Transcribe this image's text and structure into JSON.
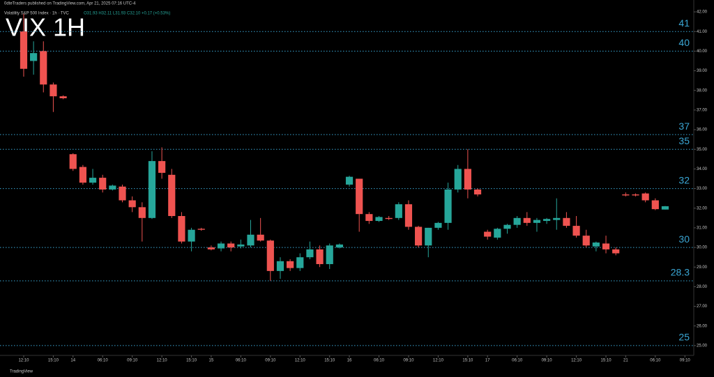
{
  "chart_data": {
    "type": "candlestick",
    "title": "VIX 1H",
    "header": "0dteTraders published on TradingView.com, Apr 21, 2025 07:16 UTC-4",
    "symbol": "Volatility S&P 500 Index · 1h · TVC",
    "ohlc_legend": "O31.93 H32.11 L31.93 C32.10 +0.17 (+0.53%)",
    "footer": "TradingView",
    "up_color": "#26a69a",
    "down_color": "#ef5350",
    "level_color": "#3aa6d4",
    "open": [
      41.0,
      39.5,
      40.0,
      38.3,
      37.7,
      34.75,
      34.1,
      33.3,
      33.55,
      32.95,
      33.1,
      32.4,
      32.05,
      31.5,
      34.4,
      33.7,
      31.6,
      30.3,
      30.95,
      30.0,
      29.95,
      30.2,
      30.05,
      30.1,
      30.65,
      30.35,
      28.8,
      29.3,
      28.95,
      29.5,
      29.9,
      29.15,
      30.0,
      33.2,
      33.5,
      31.7,
      31.35,
      31.5,
      31.5,
      32.2,
      31.05,
      30.1,
      31.0,
      31.25,
      32.95,
      34.0,
      32.95,
      30.8,
      30.5,
      30.95,
      31.15,
      31.5,
      31.25,
      31.35,
      31.4,
      31.5,
      31.1,
      30.6,
      30.05,
      30.2,
      29.9,
      32.7,
      32.7,
      32.75,
      32.4,
      31.93
    ],
    "high": [
      41.9,
      40.5,
      40.5,
      38.4,
      37.75,
      34.8,
      34.2,
      34.0,
      33.7,
      33.2,
      33.2,
      32.6,
      32.3,
      34.9,
      35.1,
      34.0,
      31.8,
      31.0,
      31.0,
      30.1,
      30.3,
      30.3,
      30.4,
      31.4,
      31.5,
      30.4,
      29.5,
      29.4,
      29.7,
      30.3,
      30.1,
      30.2,
      30.2,
      33.65,
      33.5,
      31.8,
      31.6,
      31.6,
      32.3,
      32.4,
      31.1,
      31.0,
      31.3,
      33.3,
      34.2,
      35.0,
      33.0,
      30.9,
      31.0,
      31.2,
      31.6,
      31.8,
      31.5,
      31.5,
      32.5,
      31.8,
      31.6,
      30.9,
      30.3,
      30.6,
      30.0,
      32.8,
      32.75,
      32.8,
      32.5,
      32.11
    ],
    "low": [
      38.7,
      38.8,
      37.9,
      36.9,
      37.55,
      33.9,
      33.2,
      33.2,
      32.8,
      32.9,
      32.3,
      31.8,
      30.3,
      31.45,
      33.5,
      31.5,
      30.2,
      29.8,
      30.85,
      29.85,
      29.8,
      29.8,
      29.95,
      30.0,
      30.3,
      28.3,
      28.4,
      28.8,
      28.8,
      29.4,
      29.0,
      28.9,
      29.95,
      33.1,
      30.8,
      31.2,
      31.3,
      31.4,
      31.4,
      30.9,
      30.0,
      29.5,
      30.9,
      30.9,
      32.8,
      32.5,
      32.6,
      30.4,
      30.4,
      30.7,
      31.0,
      31.1,
      30.8,
      31.2,
      30.9,
      31.0,
      30.5,
      30.0,
      29.8,
      29.7,
      29.6,
      32.6,
      32.6,
      32.3,
      31.9,
      31.93
    ],
    "close": [
      39.1,
      39.9,
      38.3,
      37.7,
      37.6,
      34.0,
      33.3,
      33.55,
      32.95,
      33.15,
      32.4,
      32.05,
      31.5,
      34.4,
      33.8,
      31.6,
      30.3,
      30.9,
      30.9,
      29.9,
      30.2,
      30.0,
      30.15,
      30.65,
      30.35,
      28.8,
      29.3,
      28.95,
      29.5,
      29.9,
      29.15,
      30.1,
      30.15,
      33.6,
      31.7,
      31.35,
      31.55,
      31.45,
      32.2,
      31.05,
      30.1,
      31.0,
      31.25,
      32.95,
      34.0,
      32.95,
      32.7,
      30.55,
      30.95,
      31.15,
      31.5,
      31.25,
      31.4,
      31.45,
      31.5,
      31.1,
      30.6,
      30.1,
      30.25,
      29.9,
      29.7,
      32.65,
      32.65,
      32.4,
      31.95,
      32.1
    ],
    "xlim": [
      -2.4,
      67.9
    ],
    "xticks": [
      {
        "value": 0,
        "label": "12:10"
      },
      {
        "value": 3,
        "label": "15:10"
      },
      {
        "value": 5,
        "label": "14"
      },
      {
        "value": 8,
        "label": "06:10"
      },
      {
        "value": 11,
        "label": "09:10"
      },
      {
        "value": 14,
        "label": "12:10"
      },
      {
        "value": 17,
        "label": "15:10"
      },
      {
        "value": 19,
        "label": "15"
      },
      {
        "value": 22,
        "label": "06:10"
      },
      {
        "value": 25,
        "label": "09:10"
      },
      {
        "value": 28,
        "label": "12:10"
      },
      {
        "value": 31,
        "label": "15:10"
      },
      {
        "value": 33,
        "label": "16"
      },
      {
        "value": 36,
        "label": "06:10"
      },
      {
        "value": 39,
        "label": "09:10"
      },
      {
        "value": 42,
        "label": "12:10"
      },
      {
        "value": 45,
        "label": "15:10"
      },
      {
        "value": 47,
        "label": "17"
      },
      {
        "value": 50,
        "label": "06:10"
      },
      {
        "value": 53,
        "label": "09:10"
      },
      {
        "value": 56,
        "label": "12:10"
      },
      {
        "value": 59,
        "label": "15:10"
      },
      {
        "value": 61,
        "label": "21"
      },
      {
        "value": 64,
        "label": "06:10"
      },
      {
        "value": 67,
        "label": "09:10"
      }
    ],
    "ylim": [
      24.5,
      42.25
    ],
    "yticks": [
      {
        "value": 25,
        "label": "25.00"
      },
      {
        "value": 26,
        "label": "26.00"
      },
      {
        "value": 27,
        "label": "27.00"
      },
      {
        "value": 28,
        "label": "28.00"
      },
      {
        "value": 29,
        "label": "29.00"
      },
      {
        "value": 30,
        "label": "30.00"
      },
      {
        "value": 31,
        "label": "31.00"
      },
      {
        "value": 32,
        "label": "32.00"
      },
      {
        "value": 33,
        "label": "33.00"
      },
      {
        "value": 34,
        "label": "34.00"
      },
      {
        "value": 35,
        "label": "35.00"
      },
      {
        "value": 36,
        "label": "36.00"
      },
      {
        "value": 37,
        "label": "37.00"
      },
      {
        "value": 38,
        "label": "38.00"
      },
      {
        "value": 39,
        "label": "39.00"
      },
      {
        "value": 40,
        "label": "40.00"
      },
      {
        "value": 41,
        "label": "41.00"
      },
      {
        "value": 42,
        "label": "42.00"
      }
    ],
    "levels": [
      41,
      40,
      {
        "value": 35.75,
        "label": "37"
      },
      35,
      {
        "value": 33,
        "label": "32"
      },
      30,
      28.3,
      25
    ]
  }
}
